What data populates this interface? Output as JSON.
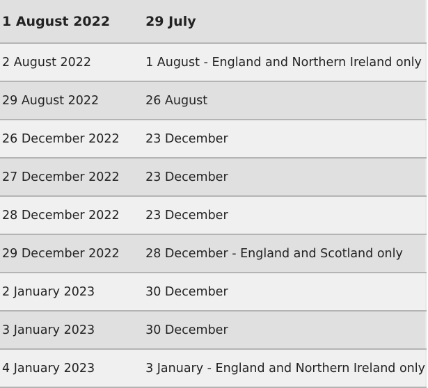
{
  "header": {
    "col1": "1 August 2022",
    "col2": "29 July"
  },
  "rows": [
    {
      "date": "2 August 2022",
      "note": "1 August - England and Northern Ireland only"
    },
    {
      "date": "29 August 2022",
      "note": "26 August"
    },
    {
      "date": "26 December 2022",
      "note": "23 December"
    },
    {
      "date": "27 December 2022",
      "note": "23 December"
    },
    {
      "date": "28 December 2022",
      "note": "23 December"
    },
    {
      "date": "29 December 2022",
      "note": "28 December - England and Scotland only"
    },
    {
      "date": "2 January 2023",
      "note": "30 December"
    },
    {
      "date": "3 January 2023",
      "note": "30 December"
    },
    {
      "date": "4 January 2023",
      "note": "3 January - England and Northern Ireland only"
    }
  ]
}
